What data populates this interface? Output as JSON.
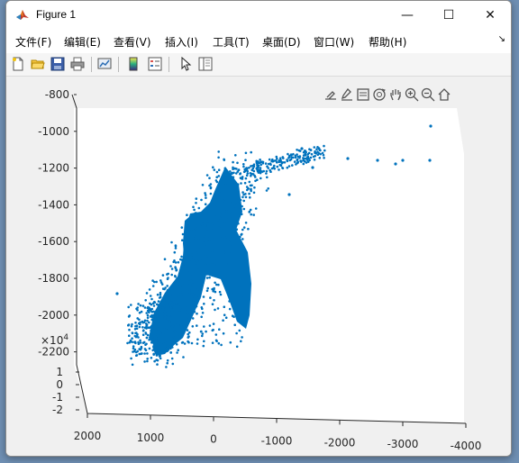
{
  "window": {
    "title": "Figure 1",
    "controls": {
      "minimize": "—",
      "maximize": "☐",
      "close": "✕"
    }
  },
  "menu": {
    "items": [
      {
        "id": "file",
        "label": "文件(F)"
      },
      {
        "id": "edit",
        "label": "编辑(E)"
      },
      {
        "id": "view",
        "label": "查看(V)"
      },
      {
        "id": "insert",
        "label": "插入(I)"
      },
      {
        "id": "tools",
        "label": "工具(T)"
      },
      {
        "id": "desktop",
        "label": "桌面(D)"
      },
      {
        "id": "window",
        "label": "窗口(W)"
      },
      {
        "id": "help",
        "label": "帮助(H)"
      }
    ],
    "overflow_arrow": "↘"
  },
  "toolbar": {
    "buttons": [
      "new-figure-icon",
      "open-folder-icon",
      "save-icon",
      "print-icon",
      "link-plot-icon",
      "colorbar-icon",
      "legend-icon",
      "pointer-icon",
      "property-editor-icon"
    ]
  },
  "axes_toolbar": {
    "buttons": [
      "export-icon",
      "brush-icon",
      "data-tips-icon",
      "rotate-3d-icon",
      "pan-icon",
      "zoom-in-icon",
      "zoom-out-icon",
      "home-icon"
    ]
  },
  "chart_data": {
    "type": "scatter",
    "title": "",
    "color": "#0072bd",
    "z_axis": {
      "ticks": [
        "-800",
        "-1000",
        "-1200",
        "-1400",
        "-1600",
        "-1800",
        "-2000",
        "-2200"
      ],
      "range": [
        -2200,
        -800
      ]
    },
    "y_axis": {
      "ticks": [
        "1",
        "0",
        "-1",
        "-2"
      ],
      "exponent": "×10",
      "exponent_power": "4",
      "range": [
        -2,
        1
      ]
    },
    "x_axis": {
      "ticks": [
        "2000",
        "1000",
        "0",
        "-1000",
        "-2000",
        "-3000",
        "-4000"
      ],
      "range": [
        -4000,
        2000
      ]
    },
    "points_note_values": {
      "main_cluster_x_range": [
        -1500,
        1000
      ],
      "outliers_x": [
        -2100,
        -2600,
        -2850,
        -3400,
        -3400
      ]
    }
  }
}
